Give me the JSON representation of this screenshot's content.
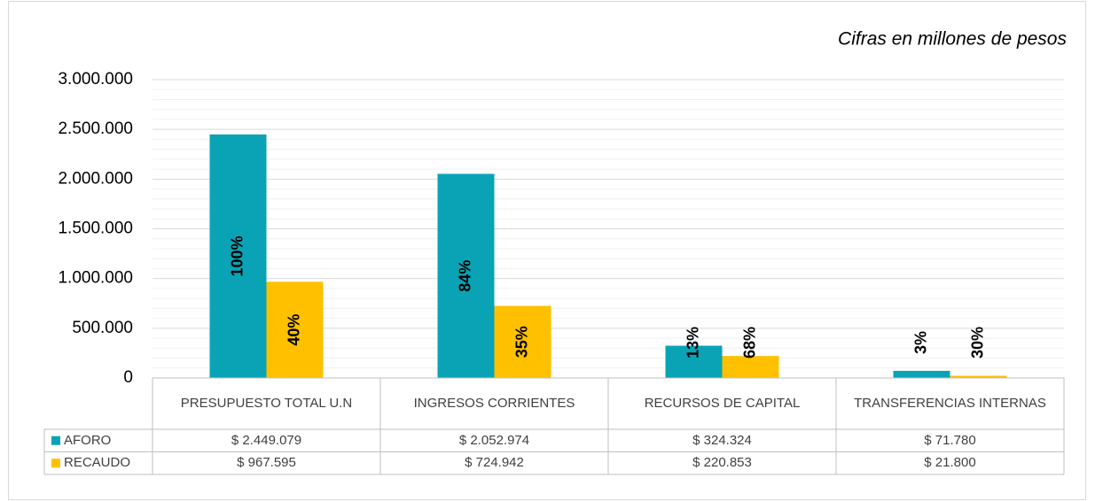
{
  "chart_data": {
    "type": "bar",
    "subtitle": "Cifras en millones de pesos",
    "categories": [
      "PRESUPUESTO TOTAL U.N",
      "INGRESOS CORRIENTES",
      "RECURSOS DE CAPITAL",
      "TRANSFERENCIAS INTERNAS"
    ],
    "series": [
      {
        "name": "AFORO",
        "color": "#0aa3b5",
        "values": [
          2449079,
          2052974,
          324324,
          71780
        ],
        "value_labels": [
          "$ 2.449.079",
          "$ 2.052.974",
          "$ 324.324",
          "$ 71.780"
        ],
        "percent_labels": [
          "100%",
          "84%",
          "13%",
          "3%"
        ],
        "percent_label_color": "#404040"
      },
      {
        "name": "RECAUDO",
        "color": "#ffc000",
        "values": [
          967595,
          724942,
          220853,
          21800
        ],
        "value_labels": [
          "$ 967.595",
          "$ 724.942",
          "$ 220.853",
          "$ 21.800"
        ],
        "percent_labels": [
          "40%",
          "35%",
          "68%",
          "30%"
        ],
        "percent_label_color": "#000000"
      }
    ],
    "ylim": [
      0,
      3000000
    ],
    "yticks": [
      0,
      {
        "value": 500000,
        "label": "500.000"
      },
      {
        "value": 1000000,
        "label": "1.000.000"
      },
      {
        "value": 1500000,
        "label": "1.500.000"
      },
      {
        "value": 2000000,
        "label": "2.000.000"
      },
      {
        "value": 2500000,
        "label": "2.500.000"
      },
      {
        "value": 3000000,
        "label": "3.000.000"
      }
    ],
    "grid": true,
    "minor_grid": true,
    "data_table": true
  }
}
